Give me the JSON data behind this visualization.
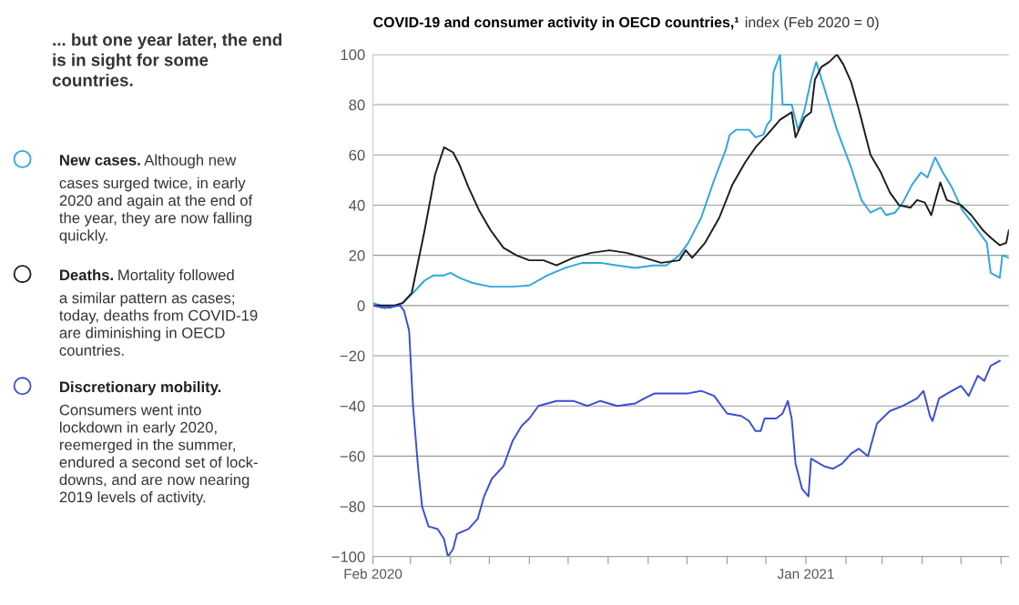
{
  "chart_data": {
    "type": "line",
    "title": "... but one year later, the end is in sight for some countries.",
    "subtitle": "COVID-19 and consumer activity in OECD countries,¹",
    "ylabel": "index (Feb 2020 = 0)",
    "legend": "left",
    "grid": "y",
    "marker": "none",
    "line_style": "solid",
    "xlim": [
      "2020-02-01",
      "2021-06-07"
    ],
    "xticks": [
      {
        "value": "2020-02-01",
        "label": "Feb 2020"
      },
      {
        "value": "2020-03-01",
        "label": null
      },
      {
        "value": "2020-04-01",
        "label": null
      },
      {
        "value": "2020-05-01",
        "label": null
      },
      {
        "value": "2020-06-01",
        "label": null
      },
      {
        "value": "2020-07-01",
        "label": null
      },
      {
        "value": "2020-08-01",
        "label": null
      },
      {
        "value": "2020-09-01",
        "label": null
      },
      {
        "value": "2020-10-01",
        "label": null
      },
      {
        "value": "2020-11-01",
        "label": null
      },
      {
        "value": "2020-12-01",
        "label": null
      },
      {
        "value": "2021-01-01",
        "label": "Jan 2021"
      },
      {
        "value": "2021-02-01",
        "label": null
      },
      {
        "value": "2021-03-01",
        "label": null
      },
      {
        "value": "2021-04-01",
        "label": null
      },
      {
        "value": "2021-05-01",
        "label": null
      },
      {
        "value": "2021-06-01",
        "label": null
      }
    ],
    "ylim": [
      -100,
      100
    ],
    "yticks": [
      {
        "value": -100,
        "label": "−100"
      },
      {
        "value": -80,
        "label": "−80"
      },
      {
        "value": -60,
        "label": "−60"
      },
      {
        "value": -40,
        "label": "−40"
      },
      {
        "value": -20,
        "label": "−20"
      },
      0,
      20,
      40,
      60,
      80,
      100
    ],
    "annotations": [
      "Although new\ncases surged twice, in early\n2020 and again at the end of\nthe year, they are now falling\nquickly.",
      "Mortality followed\na similar pattern as cases;\ntoday, deaths from COVID-19\nare diminishing in OECD\ncountries.",
      "\nConsumers went into\nlockdown in early 2020,\nreemerged in the summer,\nendured a second set of lock-\ndowns, and are now nearing\n2019 levels of activity."
    ],
    "series": [
      {
        "name": "New cases.",
        "color": "#2ea6e0",
        "x": [
          "2020-02-01",
          "2020-02-14",
          "2020-02-24",
          "2020-03-03",
          "2020-03-12",
          "2020-03-19",
          "2020-03-27",
          "2020-04-01",
          "2020-04-08",
          "2020-04-18",
          "2020-05-02",
          "2020-05-19",
          "2020-06-01",
          "2020-06-15",
          "2020-06-29",
          "2020-07-12",
          "2020-07-26",
          "2020-08-08",
          "2020-08-22",
          "2020-09-05",
          "2020-09-15",
          "2020-09-25",
          "2020-10-02",
          "2020-10-12",
          "2020-10-22",
          "2020-10-31",
          "2020-11-03",
          "2020-11-08",
          "2020-11-18",
          "2020-11-23",
          "2020-11-29",
          "2020-12-02",
          "2020-12-05",
          "2020-12-07",
          "2020-12-12",
          "2020-12-14",
          "2020-12-21",
          "2020-12-26",
          "2020-12-31",
          "2021-01-05",
          "2021-01-09",
          "2021-01-15",
          "2021-01-25",
          "2021-02-05",
          "2021-02-13",
          "2021-02-20",
          "2021-02-28",
          "2021-03-04",
          "2021-03-11",
          "2021-03-17",
          "2021-03-24",
          "2021-03-31",
          "2021-04-05",
          "2021-04-11",
          "2021-04-17",
          "2021-04-24",
          "2021-05-02",
          "2021-05-11",
          "2021-05-21",
          "2021-05-24",
          "2021-05-31",
          "2021-06-02",
          "2021-06-07"
        ],
        "values": [
          1,
          -1,
          1,
          5,
          10,
          12,
          12,
          13,
          11,
          9,
          7.5,
          7.5,
          8,
          12,
          15,
          17,
          17,
          16,
          15,
          16,
          16,
          20,
          25,
          35,
          50,
          62,
          68,
          70,
          70,
          67,
          68,
          72,
          74,
          93,
          100,
          80,
          80,
          70,
          78,
          90,
          97,
          87,
          70,
          55,
          42,
          37,
          39,
          36,
          37,
          41,
          48,
          53,
          51,
          59,
          53,
          47,
          38,
          32,
          25,
          13,
          11,
          20,
          19
        ]
      },
      {
        "name": "Deaths.",
        "color": "#1c1c1c",
        "x": [
          "2020-02-01",
          "2020-02-17",
          "2020-02-24",
          "2020-03-02",
          "2020-03-12",
          "2020-03-20",
          "2020-03-27",
          "2020-04-03",
          "2020-04-08",
          "2020-04-15",
          "2020-04-23",
          "2020-05-02",
          "2020-05-12",
          "2020-05-22",
          "2020-06-01",
          "2020-06-12",
          "2020-06-22",
          "2020-07-05",
          "2020-07-19",
          "2020-08-02",
          "2020-08-15",
          "2020-08-29",
          "2020-09-11",
          "2020-09-25",
          "2020-09-30",
          "2020-10-05",
          "2020-10-15",
          "2020-10-26",
          "2020-11-05",
          "2020-11-15",
          "2020-11-23",
          "2020-12-02",
          "2020-12-12",
          "2020-12-21",
          "2020-12-24",
          "2020-12-31",
          "2021-01-05",
          "2021-01-08",
          "2021-01-13",
          "2021-01-19",
          "2021-01-25",
          "2021-01-30",
          "2021-02-05",
          "2021-02-11",
          "2021-02-20",
          "2021-02-28",
          "2021-03-07",
          "2021-03-14",
          "2021-03-23",
          "2021-03-28",
          "2021-04-03",
          "2021-04-08",
          "2021-04-15",
          "2021-04-20",
          "2021-05-01",
          "2021-05-09",
          "2021-05-18",
          "2021-05-24",
          "2021-05-31",
          "2021-06-05",
          "2021-06-07"
        ],
        "values": [
          0,
          0,
          1,
          5,
          30,
          52,
          63,
          61,
          56,
          47,
          38,
          30,
          23,
          20,
          18,
          18,
          16,
          19,
          21,
          22,
          21,
          19,
          17,
          18,
          22,
          19,
          25,
          35,
          48,
          57,
          63,
          68,
          74,
          77,
          67,
          75,
          77,
          90,
          95,
          97,
          100,
          96,
          89,
          78,
          60,
          53,
          45,
          40,
          39,
          42,
          41,
          36,
          49,
          42,
          40,
          36,
          30,
          27,
          24,
          25,
          30
        ]
      },
      {
        "name": "Discretionary mobility.",
        "color": "#3a4ed6",
        "x": [
          "2020-02-01",
          "2020-02-10",
          "2020-02-22",
          "2020-02-25",
          "2020-02-29",
          "2020-03-03",
          "2020-03-07",
          "2020-03-10",
          "2020-03-15",
          "2020-03-22",
          "2020-03-27",
          "2020-03-30",
          "2020-04-03",
          "2020-04-06",
          "2020-04-15",
          "2020-04-22",
          "2020-04-27",
          "2020-05-03",
          "2020-05-12",
          "2020-05-19",
          "2020-05-26",
          "2020-06-01",
          "2020-06-08",
          "2020-06-22",
          "2020-07-05",
          "2020-07-16",
          "2020-07-26",
          "2020-08-08",
          "2020-08-22",
          "2020-08-29",
          "2020-09-06",
          "2020-09-18",
          "2020-10-02",
          "2020-10-12",
          "2020-10-22",
          "2020-11-01",
          "2020-11-12",
          "2020-11-18",
          "2020-11-23",
          "2020-11-27",
          "2020-11-30",
          "2020-12-09",
          "2020-12-14",
          "2020-12-18",
          "2020-12-21",
          "2020-12-24",
          "2020-12-29",
          "2021-01-03",
          "2021-01-05",
          "2021-01-15",
          "2021-01-22",
          "2021-01-29",
          "2021-02-05",
          "2021-02-11",
          "2021-02-18",
          "2021-02-25",
          "2021-03-07",
          "2021-03-17",
          "2021-03-28",
          "2021-04-02",
          "2021-04-07",
          "2021-04-09",
          "2021-04-14",
          "2021-04-24",
          "2021-05-01",
          "2021-05-07",
          "2021-05-14",
          "2021-05-19",
          "2021-05-24",
          "2021-05-31"
        ],
        "values": [
          0,
          -1,
          0,
          -2,
          -10,
          -40,
          -65,
          -80,
          -88,
          -89,
          -93,
          -100,
          -97,
          -91,
          -89,
          -85,
          -76,
          -69,
          -64,
          -54,
          -48,
          -45,
          -40,
          -38,
          -38,
          -40,
          -38,
          -40,
          -39,
          -37,
          -35,
          -35,
          -35,
          -34,
          -36,
          -43,
          -44,
          -46,
          -50,
          -50,
          -45,
          -45,
          -43,
          -38,
          -45,
          -63,
          -73,
          -76,
          -61,
          -64,
          -65,
          -63,
          -59,
          -57,
          -60,
          -47,
          -42,
          -40,
          -37,
          -34,
          -44,
          -46,
          -37,
          -34,
          -32,
          -36,
          -28,
          -30,
          -24,
          -22
        ]
      }
    ]
  }
}
